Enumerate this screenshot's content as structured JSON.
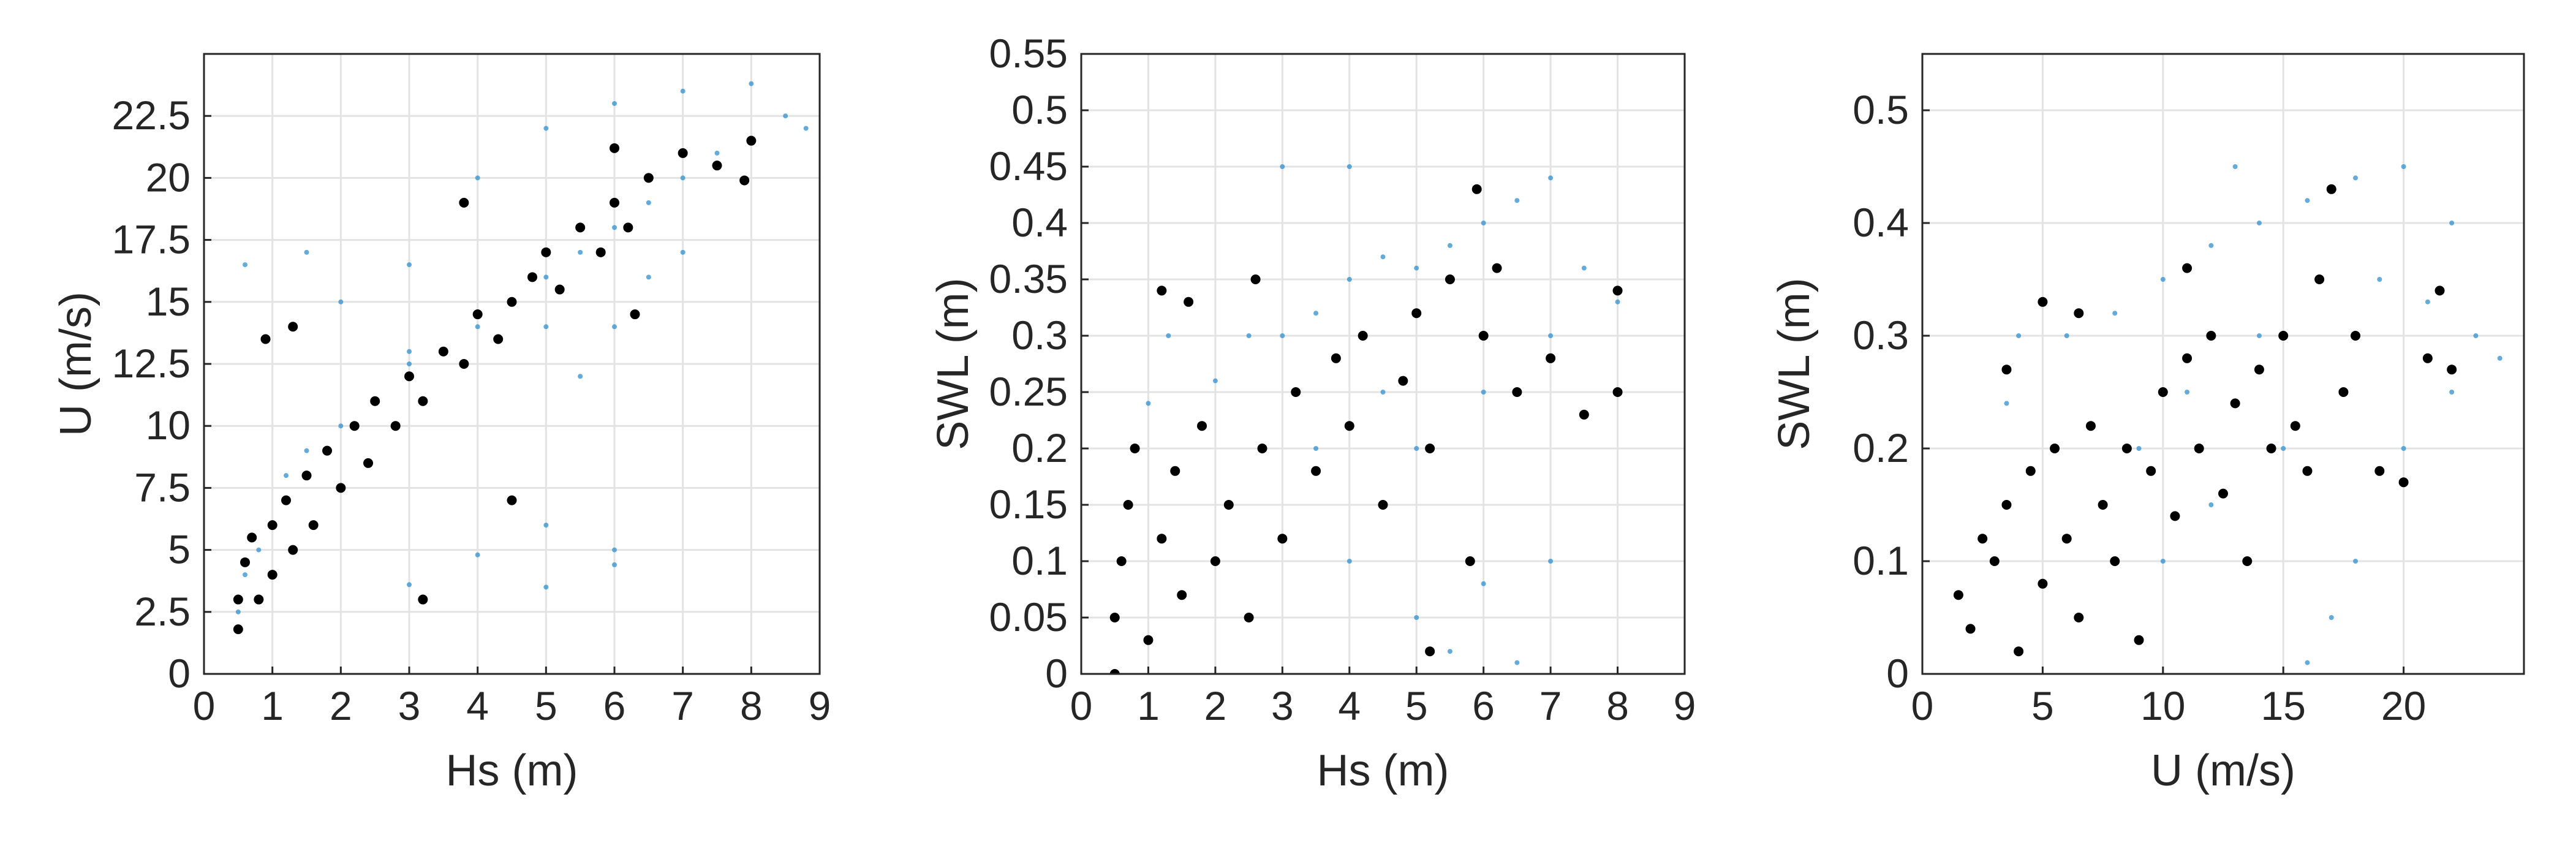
{
  "chart_data": [
    {
      "type": "scatter",
      "xlabel": "Hs (m)",
      "ylabel": "U (m/s)",
      "xlim": [
        0,
        9
      ],
      "ylim": [
        0,
        25
      ],
      "xticks": [
        "0",
        "1",
        "2",
        "3",
        "4",
        "5",
        "6",
        "7",
        "8",
        "9"
      ],
      "yticks": [
        "0",
        "2.5",
        "5",
        "7.5",
        "10",
        "12.5",
        "15",
        "17.5",
        "20",
        "22.5"
      ],
      "grid": true,
      "series": [
        {
          "color": "#2f8fcf",
          "marker": "small dots",
          "points": [
            [
              0.5,
              2.5
            ],
            [
              0.6,
              4
            ],
            [
              0.8,
              5
            ],
            [
              1.0,
              6
            ],
            [
              1.2,
              8
            ],
            [
              1.5,
              9
            ],
            [
              2,
              10
            ],
            [
              2.5,
              11
            ],
            [
              3,
              12.5
            ],
            [
              3.5,
              13
            ],
            [
              4,
              14
            ],
            [
              4.5,
              15
            ],
            [
              5,
              16
            ],
            [
              5.5,
              17
            ],
            [
              6,
              18
            ],
            [
              6.5,
              19
            ],
            [
              7,
              20
            ],
            [
              7.5,
              21
            ],
            [
              8,
              21.5
            ],
            [
              8.5,
              22.5
            ],
            [
              0.6,
              16.5
            ],
            [
              1.5,
              17
            ],
            [
              3,
              16.5
            ],
            [
              5,
              14
            ],
            [
              5.5,
              12
            ],
            [
              6,
              14
            ],
            [
              6.5,
              16
            ],
            [
              7,
              17
            ],
            [
              5,
              6
            ],
            [
              6,
              5
            ],
            [
              4,
              4.8
            ],
            [
              3,
              3.6
            ],
            [
              5,
              3.5
            ],
            [
              6,
              4.4
            ],
            [
              2,
              15
            ],
            [
              3,
              13
            ],
            [
              4,
              20
            ],
            [
              5,
              22
            ],
            [
              6,
              23
            ],
            [
              7,
              23.5
            ],
            [
              8,
              23.8
            ],
            [
              8.8,
              22
            ]
          ]
        },
        {
          "color": "#000000",
          "marker": "large dots",
          "points": [
            [
              0.5,
              1.8
            ],
            [
              0.5,
              3
            ],
            [
              0.6,
              4.5
            ],
            [
              0.7,
              5.5
            ],
            [
              0.8,
              3
            ],
            [
              1,
              6
            ],
            [
              1,
              4
            ],
            [
              1.2,
              7
            ],
            [
              1.3,
              5
            ],
            [
              1.5,
              8
            ],
            [
              1.6,
              6
            ],
            [
              1.8,
              9
            ],
            [
              2,
              7.5
            ],
            [
              2.2,
              10
            ],
            [
              2.4,
              8.5
            ],
            [
              2.5,
              11
            ],
            [
              2.8,
              10
            ],
            [
              3,
              12
            ],
            [
              3.2,
              11
            ],
            [
              3.5,
              13
            ],
            [
              3.8,
              12.5
            ],
            [
              4,
              14.5
            ],
            [
              4.3,
              13.5
            ],
            [
              4.5,
              15
            ],
            [
              4.8,
              16
            ],
            [
              5,
              17
            ],
            [
              5.2,
              15.5
            ],
            [
              5.5,
              18
            ],
            [
              5.8,
              17
            ],
            [
              6,
              19
            ],
            [
              6.2,
              18
            ],
            [
              6.5,
              20
            ],
            [
              7,
              21
            ],
            [
              7.5,
              20.5
            ],
            [
              8,
              21.5
            ],
            [
              7.9,
              19.9
            ],
            [
              3.8,
              19
            ],
            [
              6.3,
              14.5
            ],
            [
              0.9,
              13.5
            ],
            [
              3.2,
              3
            ],
            [
              1.3,
              14
            ],
            [
              6,
              21.2
            ],
            [
              4.5,
              7
            ]
          ]
        }
      ]
    },
    {
      "type": "scatter",
      "xlabel": "Hs (m)",
      "ylabel": "SWL (m)",
      "xlim": [
        0,
        9
      ],
      "ylim": [
        0,
        0.55
      ],
      "xticks": [
        "0",
        "1",
        "2",
        "3",
        "4",
        "5",
        "6",
        "7",
        "8",
        "9"
      ],
      "yticks": [
        "0",
        "0.05",
        "0.1",
        "0.15",
        "0.2",
        "0.25",
        "0.3",
        "0.35",
        "0.4",
        "0.45",
        "0.5",
        "0.55"
      ],
      "grid": true,
      "series": [
        {
          "color": "#2f8fcf",
          "marker": "small dots",
          "points": [
            [
              1,
              0.24
            ],
            [
              1.3,
              0.3
            ],
            [
              1.6,
              0.33
            ],
            [
              2,
              0.26
            ],
            [
              2.5,
              0.3
            ],
            [
              3,
              0.3
            ],
            [
              3.5,
              0.32
            ],
            [
              4,
              0.35
            ],
            [
              4.5,
              0.37
            ],
            [
              5,
              0.36
            ],
            [
              5.5,
              0.38
            ],
            [
              6,
              0.4
            ],
            [
              6.5,
              0.42
            ],
            [
              7,
              0.44
            ],
            [
              7.5,
              0.36
            ],
            [
              8,
              0.33
            ],
            [
              4,
              0.1
            ],
            [
              5,
              0.05
            ],
            [
              6,
              0.08
            ],
            [
              7,
              0.1
            ],
            [
              5,
              0.2
            ],
            [
              6,
              0.25
            ],
            [
              7,
              0.3
            ],
            [
              4,
              0.45
            ],
            [
              3,
              0.45
            ],
            [
              6.5,
              0.01
            ],
            [
              5.5,
              0.02
            ],
            [
              4.5,
              0.25
            ],
            [
              3.5,
              0.2
            ]
          ]
        },
        {
          "color": "#000000",
          "marker": "large dots",
          "points": [
            [
              0.5,
              0
            ],
            [
              0.5,
              0.05
            ],
            [
              0.6,
              0.1
            ],
            [
              0.7,
              0.15
            ],
            [
              0.8,
              0.2
            ],
            [
              1,
              0.03
            ],
            [
              1.2,
              0.12
            ],
            [
              1.4,
              0.18
            ],
            [
              1.5,
              0.07
            ],
            [
              1.8,
              0.22
            ],
            [
              2,
              0.1
            ],
            [
              2.2,
              0.15
            ],
            [
              2.5,
              0.05
            ],
            [
              2.7,
              0.2
            ],
            [
              3,
              0.12
            ],
            [
              3.2,
              0.25
            ],
            [
              3.5,
              0.18
            ],
            [
              3.8,
              0.28
            ],
            [
              4,
              0.22
            ],
            [
              4.2,
              0.3
            ],
            [
              4.5,
              0.15
            ],
            [
              4.8,
              0.26
            ],
            [
              5,
              0.32
            ],
            [
              5.2,
              0.2
            ],
            [
              5.5,
              0.35
            ],
            [
              5.8,
              0.1
            ],
            [
              6,
              0.3
            ],
            [
              6.2,
              0.36
            ],
            [
              6.5,
              0.25
            ],
            [
              7,
              0.28
            ],
            [
              7.5,
              0.23
            ],
            [
              8,
              0.34
            ],
            [
              8,
              0.25
            ],
            [
              1.2,
              0.34
            ],
            [
              1.6,
              0.33
            ],
            [
              2.6,
              0.35
            ],
            [
              5.9,
              0.43
            ],
            [
              5.2,
              0.02
            ]
          ]
        }
      ]
    },
    {
      "type": "scatter",
      "xlabel": "U (m/s)",
      "ylabel": "SWL (m)",
      "xlim": [
        0,
        25
      ],
      "ylim": [
        0,
        0.55
      ],
      "xticks": [
        "0",
        "5",
        "10",
        "15",
        "20"
      ],
      "yticks": [
        "0",
        "0.1",
        "0.2",
        "0.3",
        "0.4",
        "0.5"
      ],
      "grid": true,
      "series": [
        {
          "color": "#2f8fcf",
          "marker": "small dots",
          "points": [
            [
              3.5,
              0.24
            ],
            [
              4,
              0.3
            ],
            [
              5,
              0.33
            ],
            [
              6,
              0.3
            ],
            [
              8,
              0.32
            ],
            [
              10,
              0.35
            ],
            [
              12,
              0.38
            ],
            [
              14,
              0.4
            ],
            [
              16,
              0.42
            ],
            [
              18,
              0.44
            ],
            [
              20,
              0.45
            ],
            [
              22,
              0.4
            ],
            [
              23,
              0.3
            ],
            [
              22,
              0.25
            ],
            [
              20,
              0.2
            ],
            [
              18,
              0.1
            ],
            [
              17,
              0.05
            ],
            [
              16,
              0.01
            ],
            [
              15,
              0.2
            ],
            [
              12,
              0.15
            ],
            [
              10,
              0.1
            ],
            [
              14,
              0.3
            ],
            [
              11,
              0.25
            ],
            [
              19,
              0.35
            ],
            [
              21,
              0.33
            ],
            [
              13,
              0.45
            ],
            [
              9,
              0.2
            ],
            [
              24,
              0.28
            ]
          ]
        },
        {
          "color": "#000000",
          "marker": "large dots",
          "points": [
            [
              1.5,
              0.07
            ],
            [
              2,
              0.04
            ],
            [
              2.5,
              0.12
            ],
            [
              3,
              0.1
            ],
            [
              3.5,
              0.15
            ],
            [
              4,
              0.02
            ],
            [
              4.5,
              0.18
            ],
            [
              5,
              0.08
            ],
            [
              5.5,
              0.2
            ],
            [
              6,
              0.12
            ],
            [
              6.5,
              0.05
            ],
            [
              7,
              0.22
            ],
            [
              7.5,
              0.15
            ],
            [
              8,
              0.1
            ],
            [
              8.5,
              0.2
            ],
            [
              9,
              0.03
            ],
            [
              9.5,
              0.18
            ],
            [
              10,
              0.25
            ],
            [
              10.5,
              0.14
            ],
            [
              11,
              0.28
            ],
            [
              11.5,
              0.2
            ],
            [
              12,
              0.3
            ],
            [
              12.5,
              0.16
            ],
            [
              13,
              0.24
            ],
            [
              13.5,
              0.1
            ],
            [
              14,
              0.27
            ],
            [
              14.5,
              0.2
            ],
            [
              15,
              0.3
            ],
            [
              15.5,
              0.22
            ],
            [
              16,
              0.18
            ],
            [
              16.5,
              0.35
            ],
            [
              17,
              0.43
            ],
            [
              17.5,
              0.25
            ],
            [
              18,
              0.3
            ],
            [
              19,
              0.18
            ],
            [
              20,
              0.17
            ],
            [
              21,
              0.28
            ],
            [
              22,
              0.27
            ],
            [
              21.5,
              0.34
            ],
            [
              3.5,
              0.27
            ],
            [
              5,
              0.33
            ],
            [
              6.5,
              0.32
            ],
            [
              11,
              0.36
            ]
          ]
        }
      ]
    }
  ]
}
